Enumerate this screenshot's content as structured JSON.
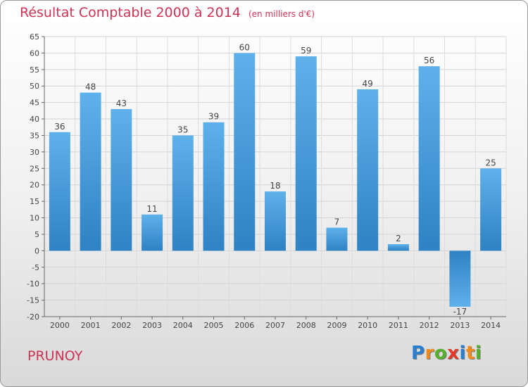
{
  "title": "Résultat Comptable 2000 à 2014",
  "subtitle": "(en milliers d'€)",
  "place": "PRUNOY",
  "brand": {
    "letters": [
      "P",
      "r",
      "o",
      "x",
      "i",
      "t",
      "i"
    ],
    "colors": [
      "#2a7fd0",
      "#f28a1c",
      "#55b02b",
      "#e23a2c",
      "#2a7fd0",
      "#f28a1c",
      "#55b02b"
    ]
  },
  "chart_data": {
    "type": "bar",
    "title": "Résultat Comptable 2000 à 2014",
    "subtitle": "(en milliers d'€)",
    "categories": [
      "2000",
      "2001",
      "2002",
      "2003",
      "2004",
      "2005",
      "2006",
      "2007",
      "2008",
      "2009",
      "2010",
      "2011",
      "2012",
      "2013",
      "2014"
    ],
    "values": [
      36,
      48,
      43,
      11,
      35,
      39,
      60,
      18,
      59,
      7,
      49,
      2,
      56,
      -17,
      25
    ],
    "ylim": [
      -20,
      65
    ],
    "yticks": [
      65,
      60,
      55,
      50,
      45,
      40,
      35,
      30,
      25,
      20,
      15,
      10,
      5,
      0,
      -5,
      -10,
      -15,
      -20
    ],
    "xlabel": "",
    "ylabel": "",
    "grid": true,
    "colors": {
      "bar_light": "#5eb1ea",
      "bar_dark": "#2f82c3"
    }
  }
}
